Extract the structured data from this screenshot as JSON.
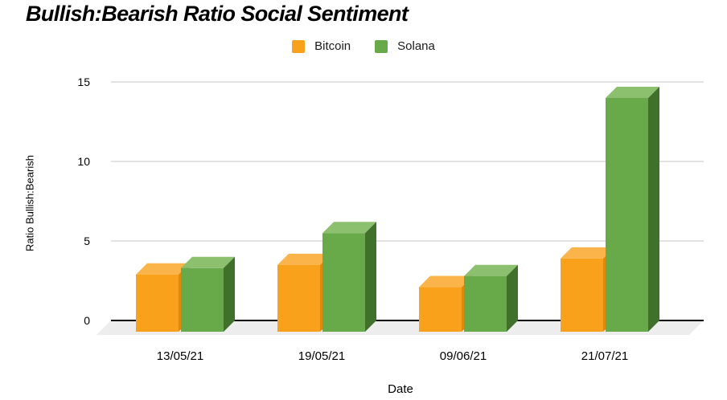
{
  "title": "Bullish:Bearish Ratio Social Sentiment",
  "chart_data": {
    "type": "bar",
    "bar_style": "3d-column",
    "title": "Bullish:Bearish Ratio Social Sentiment",
    "xlabel": "Date",
    "ylabel": "Ratio Bullish:Bearish",
    "categories": [
      "13/05/21",
      "19/05/21",
      "09/06/21",
      "21/07/21"
    ],
    "series": [
      {
        "name": "Bitcoin",
        "values": [
          3.6,
          4.2,
          2.8,
          4.6
        ],
        "color": "#F9A11B",
        "color_top": "#FBB44A",
        "color_side": "#DE8A10"
      },
      {
        "name": "Solana",
        "values": [
          4.0,
          6.2,
          3.5,
          14.7
        ],
        "color": "#68A94A",
        "color_top": "#8CC06E",
        "color_side": "#40702A"
      }
    ],
    "ylim": [
      0,
      15
    ],
    "yticks": [
      0,
      5,
      10,
      15
    ],
    "grid": true,
    "legend_position": "top-center",
    "colors": {
      "axis_line": "#000000",
      "gridline": "#D9D9D9",
      "floor": "#EDEDED",
      "background": "#FFFFFF",
      "text": "#000000"
    }
  }
}
